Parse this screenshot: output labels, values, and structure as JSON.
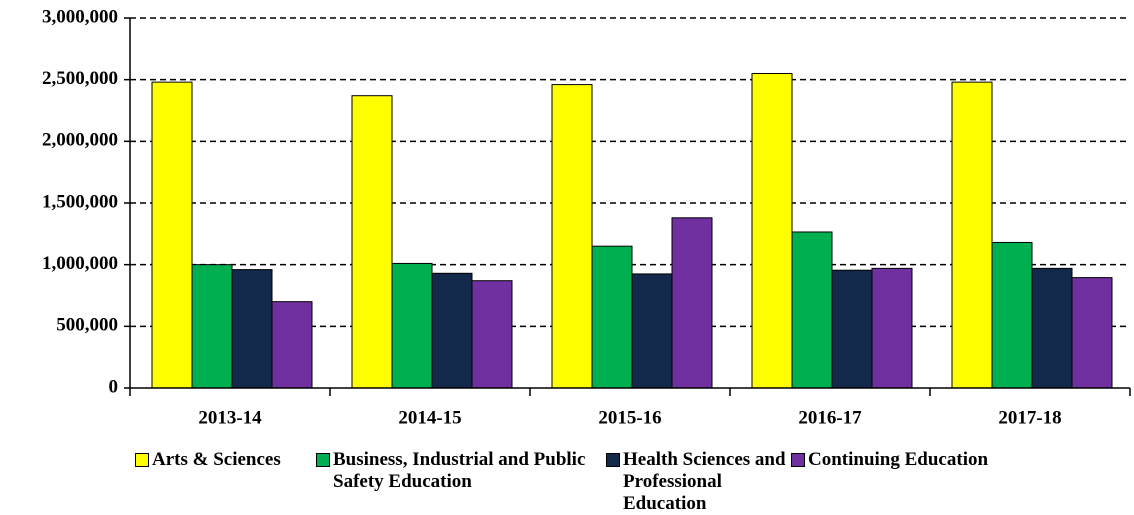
{
  "chart_data": {
    "type": "bar",
    "categories": [
      "2013-14",
      "2014-15",
      "2015-16",
      "2016-17",
      "2017-18"
    ],
    "series": [
      {
        "name": "Arts & Sciences",
        "color": "#ffff00",
        "values": [
          2480000,
          2370000,
          2460000,
          2550000,
          2480000
        ]
      },
      {
        "name": "Business, Industrial and Public Safety Education",
        "color": "#00b050",
        "values": [
          1000000,
          1010000,
          1150000,
          1265000,
          1180000
        ]
      },
      {
        "name": "Health Sciences and Professional Education",
        "color": "#13294b",
        "values": [
          960000,
          930000,
          925000,
          955000,
          970000
        ]
      },
      {
        "name": "Continuing Education",
        "color": "#7030a0",
        "values": [
          700000,
          870000,
          1380000,
          970000,
          895000
        ]
      }
    ],
    "ylim": [
      0,
      3000000
    ],
    "yticks": [
      0,
      {
        "value": 500000,
        "label": "500,000"
      },
      {
        "value": 1000000,
        "label": "1,000,000"
      },
      {
        "value": 1500000,
        "label": "1,500,000"
      },
      {
        "value": 2000000,
        "label": "2,000,000"
      },
      {
        "value": 2500000,
        "label": "2,500,000"
      },
      {
        "value": 3000000,
        "label": "3,000,000"
      }
    ],
    "grid": true,
    "legend": "bottom"
  }
}
